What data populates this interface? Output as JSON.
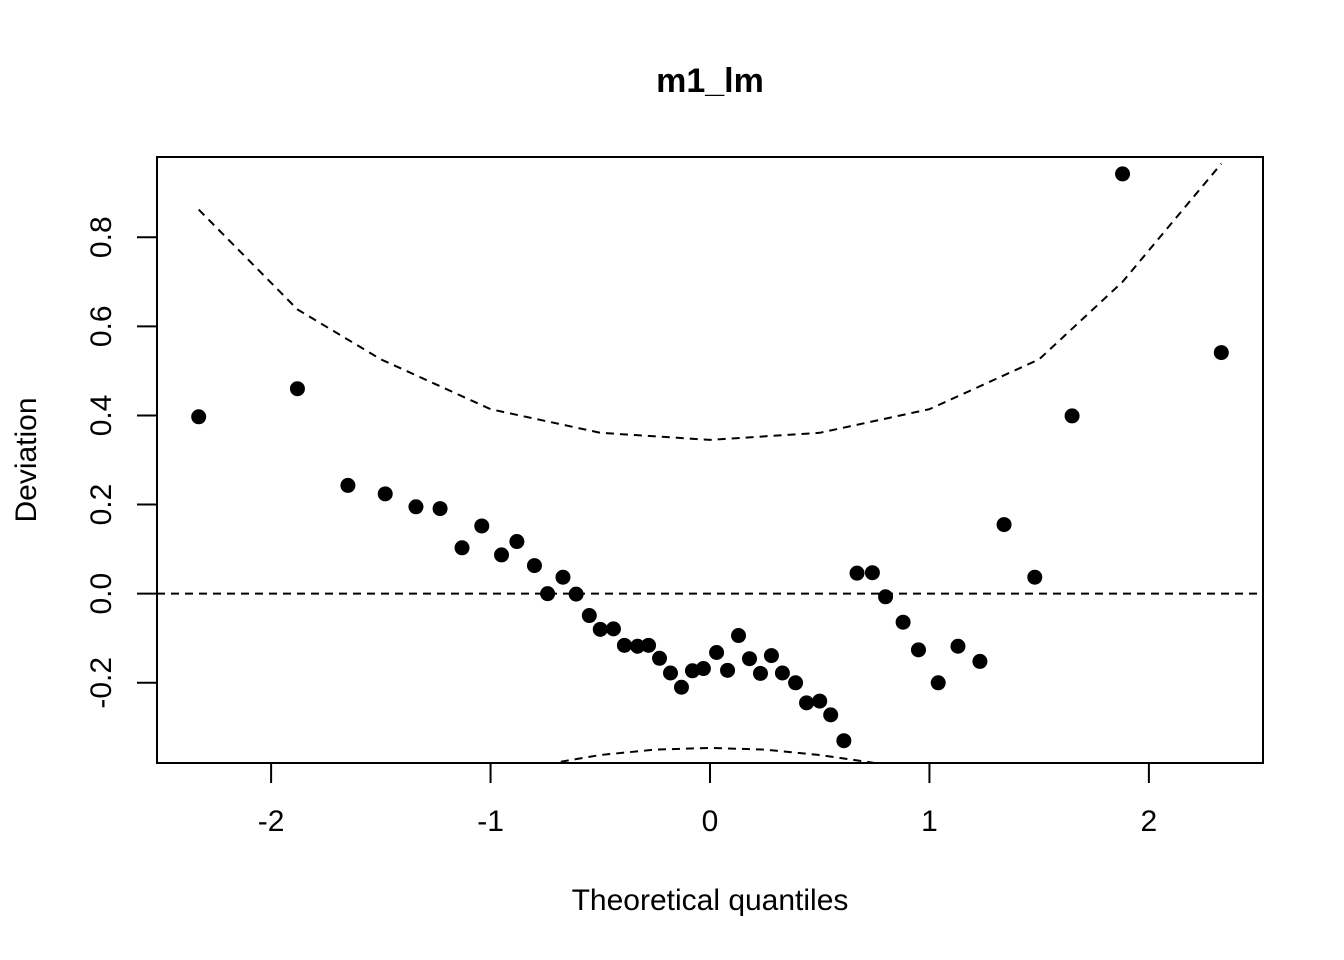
{
  "chart_data": {
    "type": "scatter",
    "title": "m1_lm",
    "xlabel": "Theoretical quantiles",
    "ylabel": "Deviation",
    "xlim": [
      -2.52,
      2.52
    ],
    "ylim": [
      -0.38,
      0.98
    ],
    "xticks": [
      {
        "value": -2,
        "label": "-2"
      },
      {
        "value": -1,
        "label": "-1"
      },
      {
        "value": 0,
        "label": "0"
      },
      {
        "value": 1,
        "label": "1"
      },
      {
        "value": 2,
        "label": "2"
      }
    ],
    "yticks": [
      {
        "value": -0.2,
        "label": "-0.2"
      },
      {
        "value": 0.0,
        "label": "0.0"
      },
      {
        "value": 0.2,
        "label": "0.2"
      },
      {
        "value": 0.4,
        "label": "0.4"
      },
      {
        "value": 0.6,
        "label": "0.6"
      },
      {
        "value": 0.8,
        "label": "0.8"
      }
    ],
    "grid": false,
    "reference_line": 0.0,
    "points": [
      {
        "x": -2.33,
        "y": 0.397
      },
      {
        "x": -1.88,
        "y": 0.46
      },
      {
        "x": -1.65,
        "y": 0.243
      },
      {
        "x": -1.48,
        "y": 0.224
      },
      {
        "x": -1.34,
        "y": 0.195
      },
      {
        "x": -1.23,
        "y": 0.191
      },
      {
        "x": -1.13,
        "y": 0.103
      },
      {
        "x": -1.04,
        "y": 0.152
      },
      {
        "x": -0.95,
        "y": 0.087
      },
      {
        "x": -0.88,
        "y": 0.117
      },
      {
        "x": -0.8,
        "y": 0.063
      },
      {
        "x": -0.74,
        "y": 0.0
      },
      {
        "x": -0.67,
        "y": 0.037
      },
      {
        "x": -0.61,
        "y": -0.001
      },
      {
        "x": -0.55,
        "y": -0.049
      },
      {
        "x": -0.5,
        "y": -0.08
      },
      {
        "x": -0.44,
        "y": -0.079
      },
      {
        "x": -0.39,
        "y": -0.116
      },
      {
        "x": -0.33,
        "y": -0.118
      },
      {
        "x": -0.28,
        "y": -0.116
      },
      {
        "x": -0.23,
        "y": -0.145
      },
      {
        "x": -0.18,
        "y": -0.178
      },
      {
        "x": -0.13,
        "y": -0.21
      },
      {
        "x": -0.08,
        "y": -0.173
      },
      {
        "x": -0.03,
        "y": -0.168
      },
      {
        "x": 0.03,
        "y": -0.132
      },
      {
        "x": 0.08,
        "y": -0.172
      },
      {
        "x": 0.13,
        "y": -0.094
      },
      {
        "x": 0.18,
        "y": -0.146
      },
      {
        "x": 0.23,
        "y": -0.179
      },
      {
        "x": 0.28,
        "y": -0.139
      },
      {
        "x": 0.33,
        "y": -0.178
      },
      {
        "x": 0.39,
        "y": -0.2
      },
      {
        "x": 0.44,
        "y": -0.245
      },
      {
        "x": 0.5,
        "y": -0.241
      },
      {
        "x": 0.55,
        "y": -0.272
      },
      {
        "x": 0.61,
        "y": -0.33
      },
      {
        "x": 0.67,
        "y": 0.046
      },
      {
        "x": 0.74,
        "y": 0.047
      },
      {
        "x": 0.8,
        "y": -0.007
      },
      {
        "x": 0.88,
        "y": -0.064
      },
      {
        "x": 0.95,
        "y": -0.126
      },
      {
        "x": 1.04,
        "y": -0.2
      },
      {
        "x": 1.13,
        "y": -0.118
      },
      {
        "x": 1.23,
        "y": -0.152
      },
      {
        "x": 1.34,
        "y": 0.155
      },
      {
        "x": 1.48,
        "y": 0.037
      },
      {
        "x": 1.65,
        "y": 0.399
      },
      {
        "x": 1.88,
        "y": 0.942
      },
      {
        "x": 2.33,
        "y": 0.541
      }
    ],
    "upper_band": [
      {
        "x": -2.33,
        "y": 0.862
      },
      {
        "x": -1.88,
        "y": 0.638
      },
      {
        "x": -1.5,
        "y": 0.526
      },
      {
        "x": -1.0,
        "y": 0.414
      },
      {
        "x": -0.5,
        "y": 0.361
      },
      {
        "x": 0.0,
        "y": 0.345
      },
      {
        "x": 0.5,
        "y": 0.361
      },
      {
        "x": 1.0,
        "y": 0.414
      },
      {
        "x": 1.5,
        "y": 0.526
      },
      {
        "x": 1.88,
        "y": 0.7
      },
      {
        "x": 2.33,
        "y": 0.965
      }
    ],
    "lower_band": [
      {
        "x": -0.68,
        "y": -0.377
      },
      {
        "x": -0.5,
        "y": -0.362
      },
      {
        "x": -0.25,
        "y": -0.35
      },
      {
        "x": 0.0,
        "y": -0.346
      },
      {
        "x": 0.25,
        "y": -0.35
      },
      {
        "x": 0.5,
        "y": -0.362
      },
      {
        "x": 0.75,
        "y": -0.38
      }
    ]
  }
}
